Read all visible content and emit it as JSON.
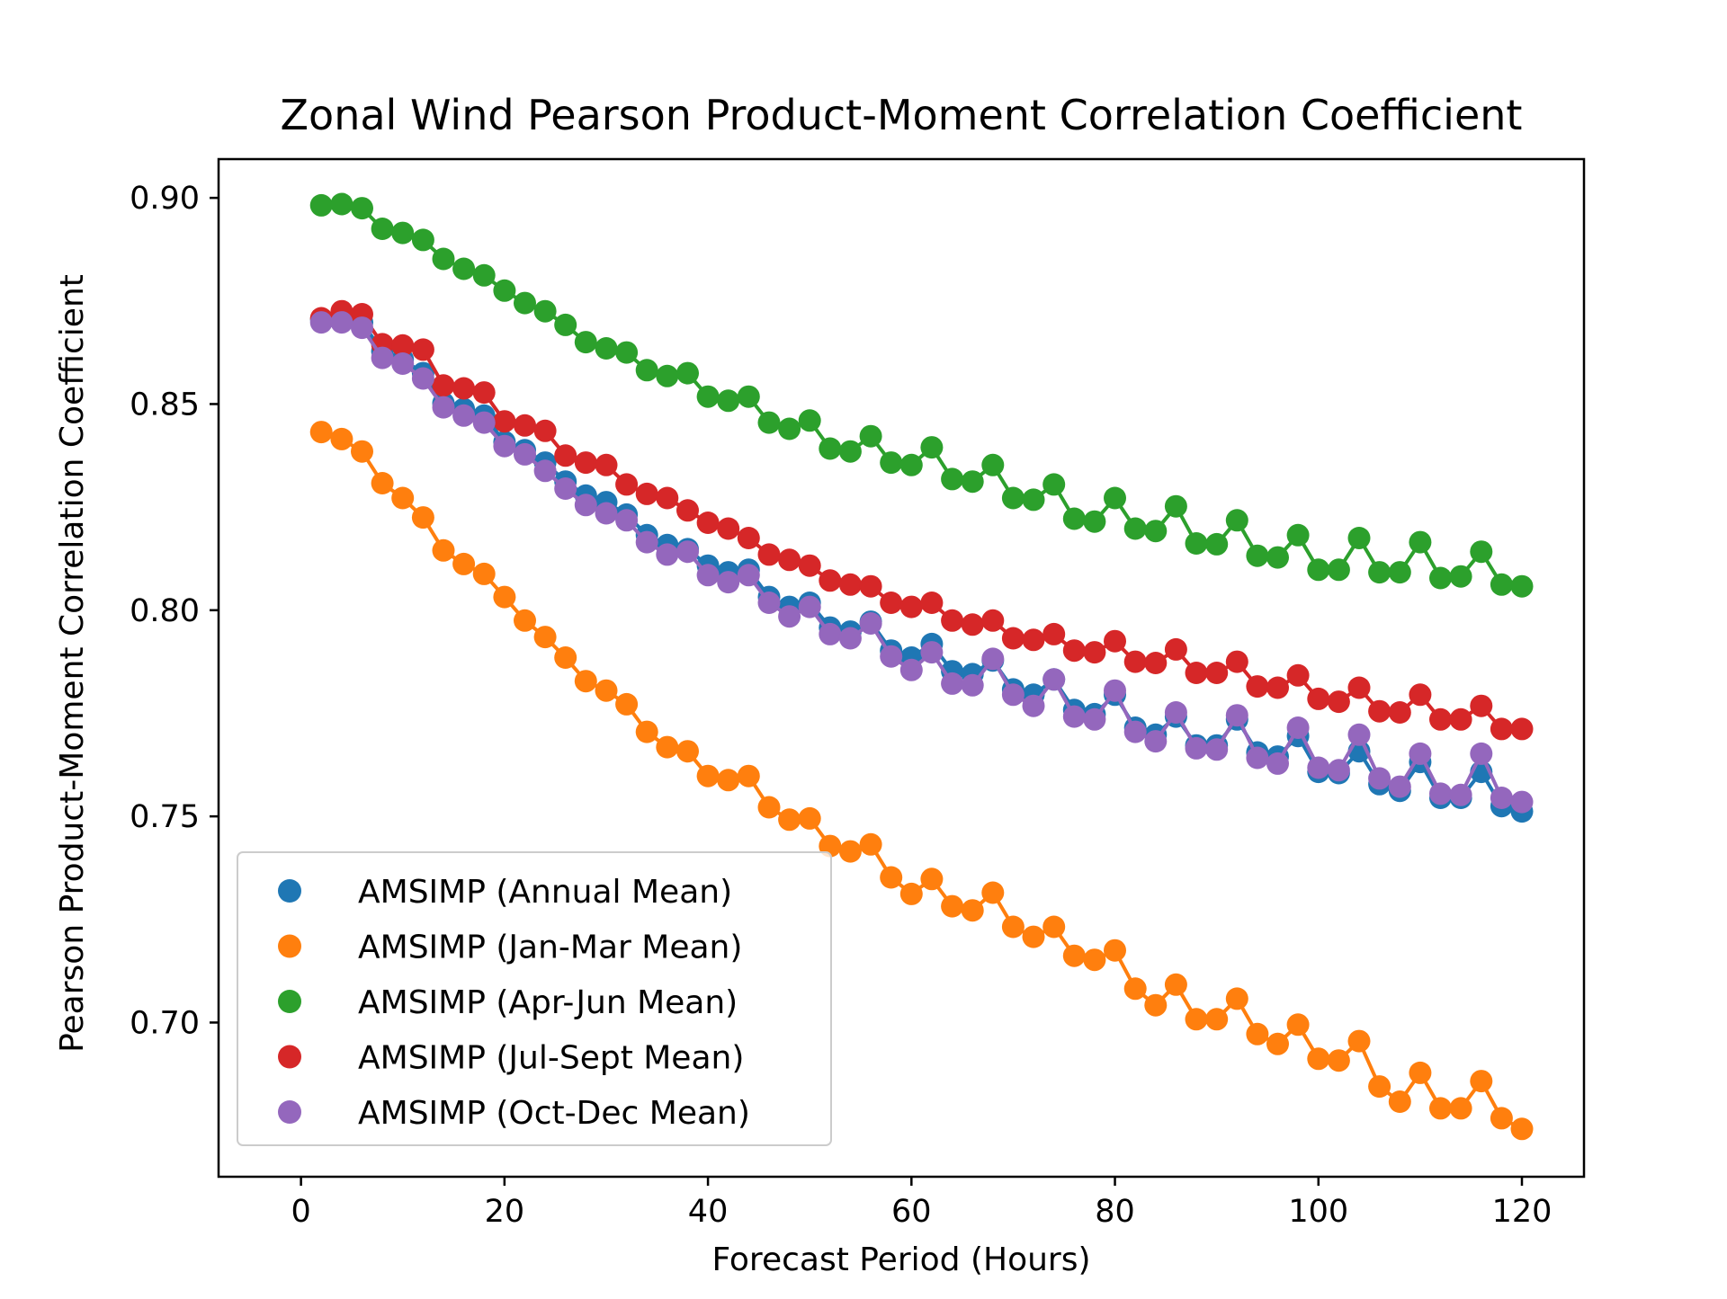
{
  "chart_data": {
    "type": "line",
    "title": "Zonal Wind Pearson Product-Moment Correlation Coefficient",
    "xlabel": "Forecast Period (Hours)",
    "ylabel": "Pearson Product-Moment Correlation Coefficient",
    "xlim": [
      -8.1,
      126.1
    ],
    "ylim": [
      0.6626,
      0.9094
    ],
    "xticks": [
      0,
      20,
      40,
      60,
      80,
      100,
      120
    ],
    "xtick_labels": [
      "0",
      "20",
      "40",
      "60",
      "80",
      "100",
      "120"
    ],
    "yticks": [
      0.7,
      0.75,
      0.8,
      0.85,
      0.9
    ],
    "ytick_labels": [
      "0.70",
      "0.75",
      "0.80",
      "0.85",
      "0.90"
    ],
    "grid": false,
    "legend_position": "lower-left",
    "x": [
      2,
      4,
      6,
      8,
      10,
      12,
      14,
      16,
      18,
      20,
      22,
      24,
      26,
      28,
      30,
      32,
      34,
      36,
      38,
      40,
      42,
      44,
      46,
      48,
      50,
      52,
      54,
      56,
      58,
      60,
      62,
      64,
      66,
      68,
      70,
      72,
      74,
      76,
      78,
      80,
      82,
      84,
      86,
      88,
      90,
      92,
      94,
      96,
      98,
      100,
      102,
      104,
      106,
      108,
      110,
      112,
      114,
      116,
      118,
      120
    ],
    "series": [
      {
        "name": "AMSIMP (Annual Mean)",
        "color": "#1f77b4",
        "values": [
          0.8705,
          0.8712,
          0.8698,
          0.8628,
          0.8608,
          0.8575,
          0.8502,
          0.8488,
          0.8472,
          0.8408,
          0.8388,
          0.8358,
          0.8312,
          0.8278,
          0.8262,
          0.8232,
          0.8182,
          0.8158,
          0.8148,
          0.8108,
          0.8092,
          0.8098,
          0.8032,
          0.8008,
          0.8018,
          0.7958,
          0.7948,
          0.7972,
          0.7902,
          0.7885,
          0.7918,
          0.7852,
          0.7845,
          0.7878,
          0.7808,
          0.7795,
          0.7832,
          0.7758,
          0.7748,
          0.7795,
          0.7715,
          0.7698,
          0.7742,
          0.7672,
          0.7672,
          0.7735,
          0.7655,
          0.7645,
          0.7695,
          0.7608,
          0.7605,
          0.7658,
          0.7578,
          0.7562,
          0.7632,
          0.7545,
          0.7545,
          0.7608,
          0.7525,
          0.7512
        ]
      },
      {
        "name": "AMSIMP (Jan-Mar Mean)",
        "color": "#ff7f0e",
        "values": [
          0.8432,
          0.8415,
          0.8385,
          0.8308,
          0.8272,
          0.8225,
          0.8145,
          0.8112,
          0.8088,
          0.8032,
          0.7975,
          0.7935,
          0.7885,
          0.7828,
          0.7805,
          0.7772,
          0.7705,
          0.7668,
          0.7658,
          0.7598,
          0.7588,
          0.7598,
          0.7522,
          0.7492,
          0.7495,
          0.7428,
          0.7415,
          0.7432,
          0.7352,
          0.7312,
          0.7348,
          0.7282,
          0.7272,
          0.7315,
          0.7232,
          0.7208,
          0.7232,
          0.7162,
          0.7152,
          0.7175,
          0.7082,
          0.7042,
          0.7092,
          0.7008,
          0.7008,
          0.7058,
          0.6972,
          0.6948,
          0.6995,
          0.6912,
          0.6908,
          0.6955,
          0.6845,
          0.6808,
          0.6878,
          0.6792,
          0.6792,
          0.6858,
          0.6768,
          0.6742
        ]
      },
      {
        "name": "AMSIMP (Apr-Jun Mean)",
        "color": "#2ca02c",
        "values": [
          0.8982,
          0.8985,
          0.8975,
          0.8925,
          0.8915,
          0.8898,
          0.8852,
          0.8828,
          0.8812,
          0.8775,
          0.8745,
          0.8725,
          0.8692,
          0.865,
          0.8635,
          0.8625,
          0.8582,
          0.8568,
          0.8575,
          0.8518,
          0.8508,
          0.8518,
          0.8455,
          0.844,
          0.846,
          0.8392,
          0.8385,
          0.8422,
          0.8358,
          0.8352,
          0.8395,
          0.8318,
          0.8312,
          0.8352,
          0.8272,
          0.8268,
          0.8305,
          0.8222,
          0.8215,
          0.8272,
          0.8198,
          0.8192,
          0.8252,
          0.8162,
          0.816,
          0.8218,
          0.8132,
          0.8128,
          0.8182,
          0.8098,
          0.8098,
          0.8175,
          0.8092,
          0.8092,
          0.8165,
          0.8078,
          0.8082,
          0.8142,
          0.8062,
          0.8058
        ]
      },
      {
        "name": "AMSIMP (Jul-Sept Mean)",
        "color": "#d62728",
        "values": [
          0.8708,
          0.8725,
          0.8718,
          0.8645,
          0.8642,
          0.8632,
          0.8545,
          0.8538,
          0.8528,
          0.8458,
          0.8448,
          0.8435,
          0.8375,
          0.8358,
          0.8352,
          0.8305,
          0.8282,
          0.8272,
          0.8242,
          0.8212,
          0.8198,
          0.8175,
          0.8135,
          0.8122,
          0.8108,
          0.8072,
          0.8062,
          0.8058,
          0.8018,
          0.8008,
          0.8018,
          0.7975,
          0.7965,
          0.7975,
          0.7932,
          0.7928,
          0.7942,
          0.7902,
          0.7898,
          0.7925,
          0.7875,
          0.7872,
          0.7905,
          0.7848,
          0.7848,
          0.7875,
          0.7815,
          0.7812,
          0.7842,
          0.7785,
          0.7778,
          0.7812,
          0.7755,
          0.7752,
          0.7795,
          0.7735,
          0.7735,
          0.7768,
          0.7712,
          0.7712
        ]
      },
      {
        "name": "AMSIMP (Oct-Dec Mean)",
        "color": "#9467bd",
        "values": [
          0.8698,
          0.8698,
          0.8685,
          0.8612,
          0.8598,
          0.8562,
          0.8492,
          0.8472,
          0.8455,
          0.8398,
          0.8378,
          0.8338,
          0.8295,
          0.8255,
          0.8235,
          0.8218,
          0.8165,
          0.8135,
          0.8142,
          0.8085,
          0.8068,
          0.8085,
          0.8018,
          0.7985,
          0.8008,
          0.7942,
          0.7932,
          0.7968,
          0.7888,
          0.7855,
          0.7898,
          0.7822,
          0.7818,
          0.7882,
          0.7795,
          0.7768,
          0.7832,
          0.7742,
          0.7735,
          0.7805,
          0.7705,
          0.7682,
          0.7752,
          0.7665,
          0.7662,
          0.7745,
          0.7642,
          0.7628,
          0.7715,
          0.7618,
          0.7612,
          0.7698,
          0.7592,
          0.7572,
          0.7652,
          0.7555,
          0.7552,
          0.7652,
          0.7545,
          0.7535
        ]
      }
    ]
  }
}
